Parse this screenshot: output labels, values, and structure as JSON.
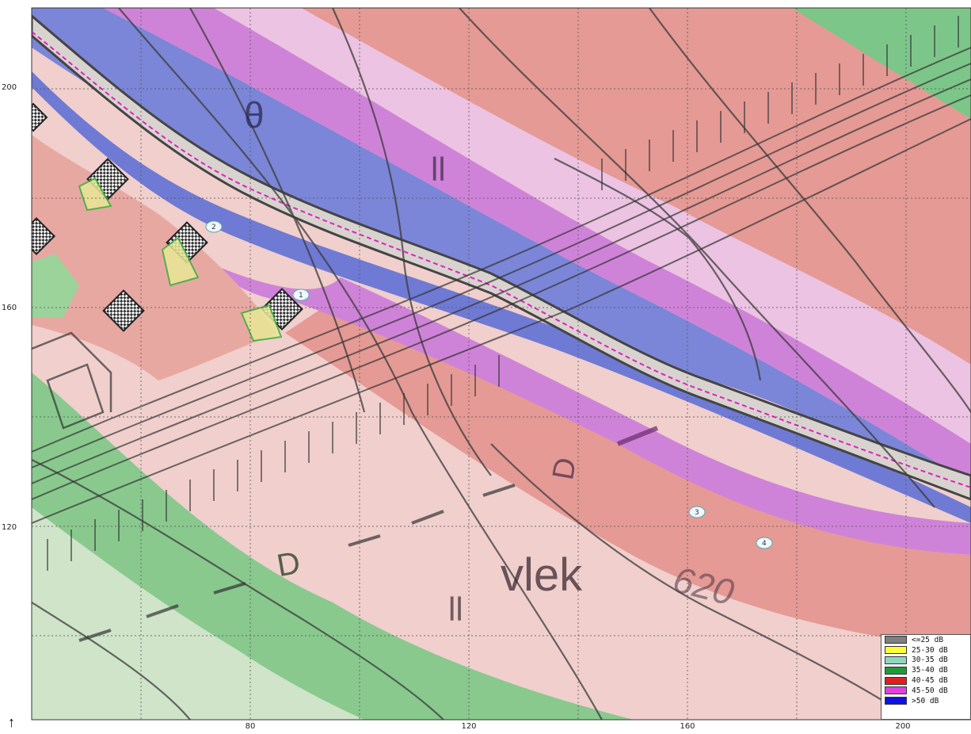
{
  "map": {
    "axis_y": [
      {
        "value": "200",
        "top": 0
      },
      {
        "value": "160",
        "top": 0
      },
      {
        "value": "120",
        "top": 0
      }
    ],
    "axis_x": [
      "80",
      "120",
      "160",
      "200"
    ],
    "labels": {
      "vlek": "vlek",
      "contour": "620",
      "letter_d1": "D",
      "letter_d2": "D",
      "letter_theta": "θ",
      "glyph_ii1": "ll",
      "glyph_ii2": "ll"
    },
    "markers": [
      "1",
      "2",
      "3",
      "4"
    ],
    "north_arrow": "↑"
  },
  "legend": {
    "items": [
      {
        "label": "<=25  dB",
        "color": "#7f7f7f"
      },
      {
        "label": "25-30  dB",
        "color": "#ffff33"
      },
      {
        "label": "30-35  dB",
        "color": "#8fd8c0"
      },
      {
        "label": "35-40  dB",
        "color": "#1f9a3a"
      },
      {
        "label": "40-45  dB",
        "color": "#e02020"
      },
      {
        "label": "45-50  dB",
        "color": "#e040e0"
      },
      {
        "label": ">50  dB",
        "color": "#1010e0"
      }
    ]
  }
}
